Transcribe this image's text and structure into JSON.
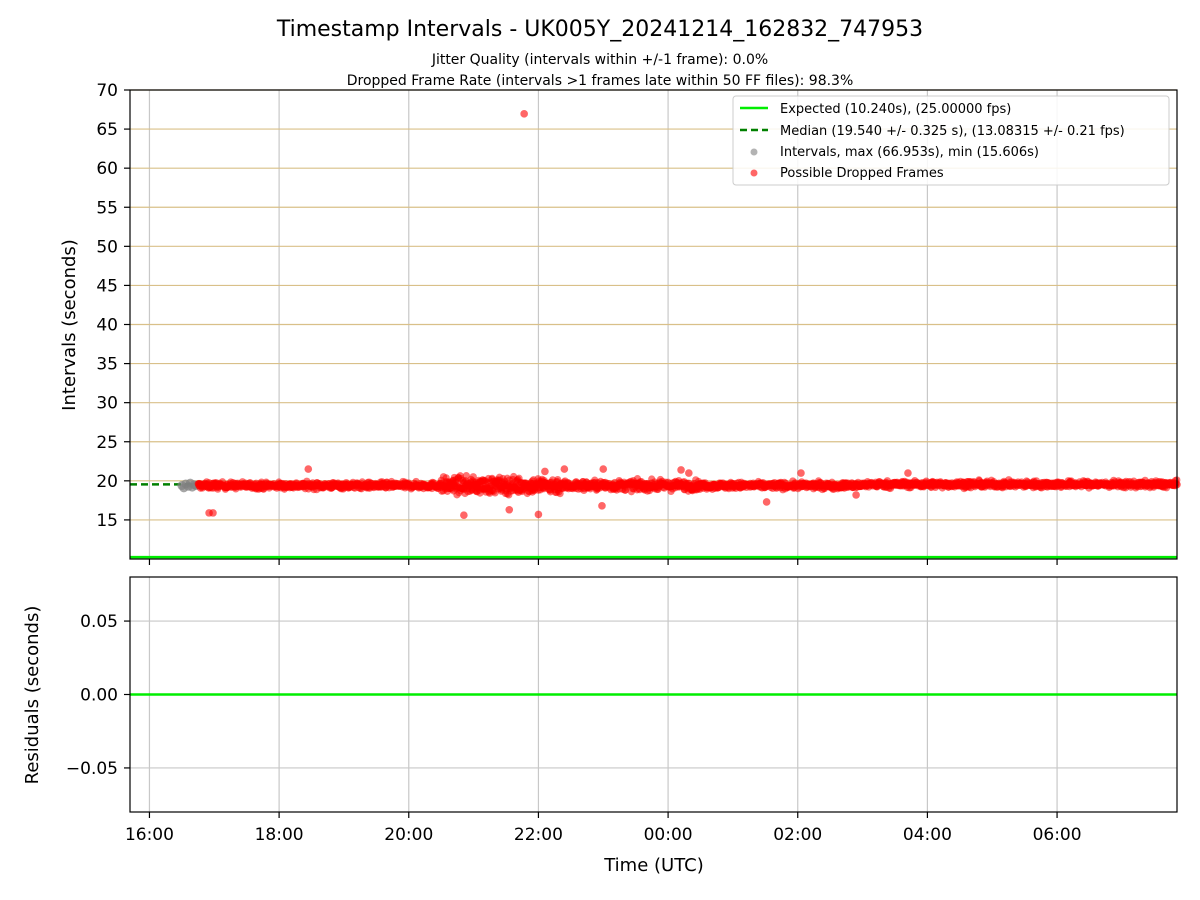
{
  "chart_data": [
    {
      "type": "scatter",
      "title": "Timestamp Intervals - UK005Y_20241214_162832_747953",
      "subtitle_lines": [
        "Jitter Quality (intervals within +/-1 frame): 0.0%",
        "Dropped Frame Rate (intervals >1 frames late within 50 FF files): 98.3%"
      ],
      "xlabel": "",
      "ylabel": "Intervals (seconds)",
      "x_unit": "hours since 16:00 UTC",
      "xlim": [
        -0.3,
        15.85
      ],
      "ylim": [
        10,
        70
      ],
      "yticks": [
        15,
        20,
        25,
        30,
        35,
        40,
        45,
        50,
        55,
        60,
        65,
        70
      ],
      "grid": true,
      "legend_position": "top-right",
      "legend": [
        "Expected (10.240s), (25.00000 fps)",
        "Median (19.540 +/- 0.325 s), (13.08315 +/- 0.21 fps)",
        "Intervals, max (66.953s), min (15.606s)",
        "Possible Dropped Frames"
      ],
      "expected_value": 10.24,
      "median_value": 19.54,
      "median_extent_hours": [
        -0.3,
        0.7
      ],
      "series": [
        {
          "name": "Intervals, max (66.953s), min (15.606s)",
          "color": "#808080",
          "x_hours": [
            0.5,
            0.53,
            0.56,
            0.6,
            0.63,
            0.66,
            0.69,
            0.72
          ],
          "y": [
            19.4,
            19.1,
            19.6,
            19.3,
            19.7,
            19.2,
            19.5,
            19.4
          ]
        },
        {
          "name": "Possible Dropped Frames",
          "color": "#ff0000",
          "band_hours": [
            0.75,
            15.85
          ],
          "band_center": 19.4,
          "band_spread": 0.45,
          "outliers": [
            {
              "x_hours": 5.78,
              "y": 66.95
            },
            {
              "x_hours": 0.92,
              "y": 15.9
            },
            {
              "x_hours": 0.98,
              "y": 15.9
            },
            {
              "x_hours": 2.45,
              "y": 21.5
            },
            {
              "x_hours": 4.85,
              "y": 15.6
            },
            {
              "x_hours": 5.55,
              "y": 16.3
            },
            {
              "x_hours": 6.0,
              "y": 15.7
            },
            {
              "x_hours": 6.1,
              "y": 21.2
            },
            {
              "x_hours": 6.4,
              "y": 21.5
            },
            {
              "x_hours": 7.0,
              "y": 21.5
            },
            {
              "x_hours": 6.98,
              "y": 16.8
            },
            {
              "x_hours": 8.2,
              "y": 21.4
            },
            {
              "x_hours": 8.32,
              "y": 21.0
            },
            {
              "x_hours": 9.52,
              "y": 17.3
            },
            {
              "x_hours": 10.05,
              "y": 21.0
            },
            {
              "x_hours": 11.7,
              "y": 21.0
            },
            {
              "x_hours": 10.9,
              "y": 18.2
            }
          ]
        }
      ]
    },
    {
      "type": "line",
      "xlabel": "Time (UTC)",
      "ylabel": "Residuals (seconds)",
      "xlim": [
        -0.3,
        15.85
      ],
      "ylim": [
        -0.08,
        0.08
      ],
      "yticks": [
        -0.05,
        0.0,
        0.05
      ],
      "ytick_labels": [
        "−0.05",
        "0.00",
        "0.05"
      ],
      "xticks_hours": [
        0,
        2,
        4,
        6,
        8,
        10,
        12,
        14
      ],
      "xtick_labels": [
        "16:00",
        "18:00",
        "20:00",
        "22:00",
        "00:00",
        "02:00",
        "04:00",
        "06:00"
      ],
      "grid": true,
      "series": [
        {
          "name": "",
          "color": "#00ee00",
          "x_hours": [
            -0.3,
            15.85
          ],
          "y": [
            0.0,
            0.0
          ]
        }
      ]
    }
  ]
}
